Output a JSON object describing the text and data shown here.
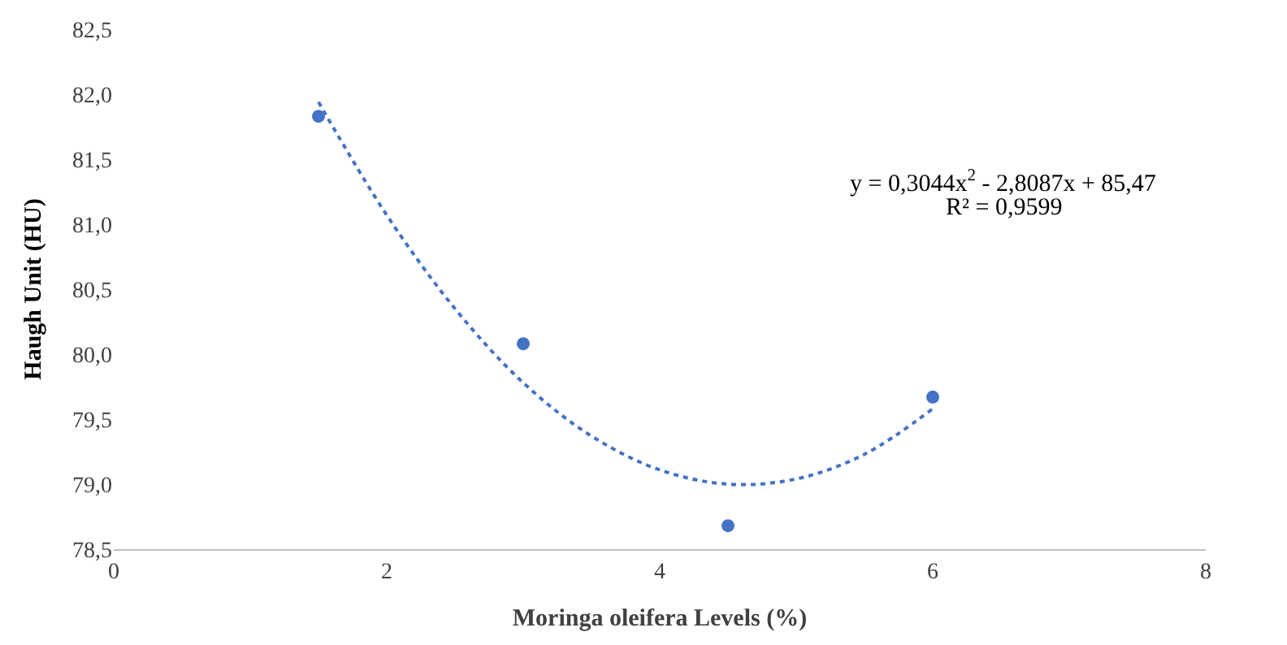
{
  "chart_data": {
    "type": "scatter",
    "xlabel": "Moringa oleifera Levels (%)",
    "ylabel": "Haugh Unit (HU)",
    "series": [
      {
        "color": "#4472c4",
        "marker": "circle",
        "x": [
          1.5,
          3,
          4.5,
          6
        ],
        "values": [
          81.83,
          80.08,
          78.68,
          79.67
        ]
      },
      {
        "type": "line",
        "color": "#4472c4",
        "line_style": "dotted",
        "x": [
          1.5,
          2,
          2.5,
          3,
          3.5,
          4,
          4.5,
          5,
          5.5,
          6
        ],
        "values": [
          81.94,
          81.07,
          80.35,
          79.78,
          79.37,
          79.11,
          79.0,
          79.04,
          79.23,
          79.58
        ]
      }
    ],
    "xlim": [
      0,
      8
    ],
    "xticks": [
      0,
      2,
      4,
      6,
      8
    ],
    "ylim": [
      78.5,
      82.5
    ],
    "yticks": [
      {
        "value": 78.5,
        "label": "78,5"
      },
      {
        "value": 79,
        "label": "79,0"
      },
      {
        "value": 79.5,
        "label": "79,5"
      },
      {
        "value": 80,
        "label": "80,0"
      },
      {
        "value": 80.5,
        "label": "80,5"
      },
      {
        "value": 81,
        "label": "81,0"
      },
      {
        "value": 81.5,
        "label": "81,5"
      },
      {
        "value": 82,
        "label": "82,0"
      },
      {
        "value": 82.5,
        "label": "82,5"
      }
    ],
    "annotations": [
      "y = 0,3044x$^{2}$ - 2,8087x + 85,47",
      "R² = 0,9599"
    ]
  }
}
